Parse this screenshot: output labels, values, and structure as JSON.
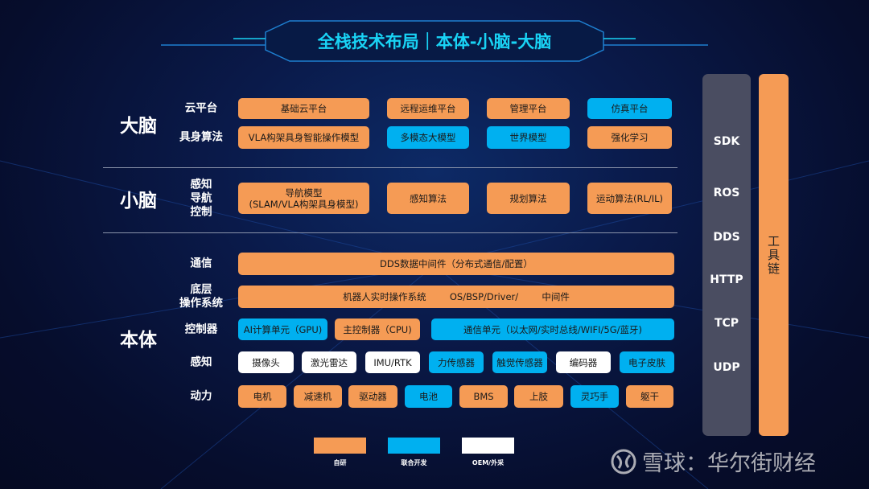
{
  "title": "全栈技术布局｜本体-小脑-大脑",
  "colors": {
    "self": "#f59b55",
    "joint": "#00b0f0",
    "oem": "#ffffff",
    "accent": "#19d3f5"
  },
  "sections": {
    "brain": {
      "label": "大脑",
      "rows": [
        {
          "label": "云平台",
          "items": [
            {
              "text": "基础云平台",
              "type": "self"
            },
            {
              "text": "远程运维平台",
              "type": "self"
            },
            {
              "text": "管理平台",
              "type": "self"
            },
            {
              "text": "仿真平台",
              "type": "joint"
            }
          ]
        },
        {
          "label": "具身算法",
          "items": [
            {
              "text": "VLA构架具身智能操作模型",
              "type": "self"
            },
            {
              "text": "多模态大模型",
              "type": "joint"
            },
            {
              "text": "世界模型",
              "type": "joint"
            },
            {
              "text": "强化学习",
              "type": "self"
            }
          ]
        }
      ]
    },
    "cerebellum": {
      "label": "小脑",
      "rows": [
        {
          "label": "感知\n导航\n控制",
          "items": [
            {
              "text": "导航模型\n(SLAM/VLA构架具身模型)",
              "type": "self"
            },
            {
              "text": "感知算法",
              "type": "self"
            },
            {
              "text": "规划算法",
              "type": "self"
            },
            {
              "text": "运动算法(RL/IL)",
              "type": "self"
            }
          ]
        }
      ]
    },
    "body": {
      "label": "本体",
      "rows": [
        {
          "label": "通信",
          "items": [
            {
              "text": "DDS数据中间件（分布式通信/配置）",
              "type": "self"
            }
          ]
        },
        {
          "label": "底层\n操作系统",
          "items": [
            {
              "text": "机器人实时操作系统        OS/BSP/Driver/        中间件",
              "type": "self"
            }
          ]
        },
        {
          "label": "控制器",
          "items": [
            {
              "text": "AI计算单元（GPU)",
              "type": "joint"
            },
            {
              "text": "主控制器（CPU)",
              "type": "self"
            },
            {
              "text": "通信单元（以太网/实时总线/WIFI/5G/蓝牙)",
              "type": "joint"
            }
          ]
        },
        {
          "label": "感知",
          "items": [
            {
              "text": "摄像头",
              "type": "oem"
            },
            {
              "text": "激光雷达",
              "type": "oem"
            },
            {
              "text": "IMU/RTK",
              "type": "oem"
            },
            {
              "text": "力传感器",
              "type": "joint"
            },
            {
              "text": "触觉传感器",
              "type": "joint"
            },
            {
              "text": "编码器",
              "type": "oem"
            },
            {
              "text": "电子皮肤",
              "type": "joint"
            }
          ]
        },
        {
          "label": "动力",
          "items": [
            {
              "text": "电机",
              "type": "self"
            },
            {
              "text": "减速机",
              "type": "self"
            },
            {
              "text": "驱动器",
              "type": "self"
            },
            {
              "text": "电池",
              "type": "joint"
            },
            {
              "text": "BMS",
              "type": "self"
            },
            {
              "text": "上肢",
              "type": "self"
            },
            {
              "text": "灵巧手",
              "type": "joint"
            },
            {
              "text": "躯干",
              "type": "self"
            }
          ]
        }
      ]
    }
  },
  "protocols": [
    "SDK",
    "ROS",
    "DDS",
    "HTTP",
    "TCP",
    "UDP"
  ],
  "toolchain": "工具链",
  "legend": [
    {
      "label": "自研",
      "type": "self"
    },
    {
      "label": "联合开发",
      "type": "joint"
    },
    {
      "label": "OEM/外采",
      "type": "oem"
    }
  ],
  "watermark": "雪球：华尔街财经"
}
